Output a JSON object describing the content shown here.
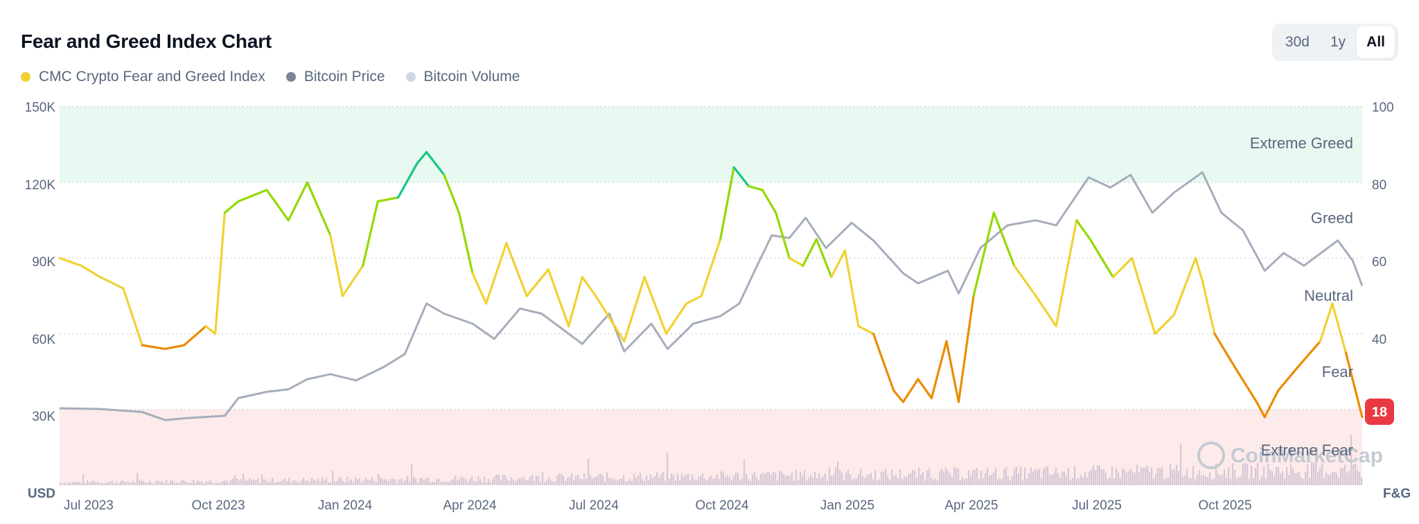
{
  "header": {
    "title": "Fear and Greed Index Chart"
  },
  "range_buttons": [
    {
      "label": "30d",
      "active": false
    },
    {
      "label": "1y",
      "active": false
    },
    {
      "label": "All",
      "active": true
    }
  ],
  "legend": [
    {
      "label": "CMC Crypto Fear and Greed Index",
      "color": "#f1d132"
    },
    {
      "label": "Bitcoin Price",
      "color": "#7d8597"
    },
    {
      "label": "Bitcoin Volume",
      "color": "#cfd6e4"
    }
  ],
  "watermark": "CoinMarketCap",
  "colors": {
    "extreme_greed": "#16c784",
    "greed": "#93d900",
    "neutral": "#f1d132",
    "fear": "#ea8c00",
    "extreme_fear": "#ea3943",
    "price": "#a6adbb",
    "volume": "#d5c8d6",
    "zone_greed_bg": "#e8f9f1",
    "zone_fear_bg": "#fdeaea"
  },
  "chart_data": {
    "type": "line",
    "left_axis": {
      "unit": "USD",
      "ticks": [
        "150K",
        "120K",
        "90K",
        "60K",
        "30K"
      ],
      "values": [
        150000,
        120000,
        90000,
        60000,
        30000
      ],
      "range": [
        0,
        150000
      ]
    },
    "right_axis": {
      "unit": "F&G",
      "ticks": [
        "100",
        "80",
        "60",
        "40"
      ],
      "values": [
        100,
        80,
        60,
        40
      ],
      "range": [
        0,
        100
      ]
    },
    "x_ticks": [
      "Jul 2023",
      "Oct 2023",
      "Jan 2024",
      "Apr 2024",
      "Jul 2024",
      "Oct 2024",
      "Jan 2025",
      "Apr 2025",
      "Jul 2025",
      "Oct 2025"
    ],
    "zones": [
      "Extreme Greed",
      "Greed",
      "Neutral",
      "Fear",
      "Extreme Fear"
    ],
    "current_value": "18",
    "series": [
      {
        "name": "CMC Crypto Fear and Greed Index",
        "x": [
          "2023-06-15",
          "2023-07-01",
          "2023-07-15",
          "2023-08-01",
          "2023-08-15",
          "2023-09-01",
          "2023-09-15",
          "2023-10-01",
          "2023-10-08",
          "2023-10-15",
          "2023-10-25",
          "2023-11-15",
          "2023-12-01",
          "2023-12-15",
          "2024-01-01",
          "2024-01-10",
          "2024-01-25",
          "2024-02-05",
          "2024-02-20",
          "2024-03-05",
          "2024-03-12",
          "2024-03-25",
          "2024-04-05",
          "2024-04-15",
          "2024-04-25",
          "2024-05-10",
          "2024-05-25",
          "2024-06-10",
          "2024-06-25",
          "2024-07-05",
          "2024-07-15",
          "2024-08-05",
          "2024-08-20",
          "2024-09-05",
          "2024-09-20",
          "2024-10-01",
          "2024-10-15",
          "2024-10-25",
          "2024-11-05",
          "2024-11-15",
          "2024-11-25",
          "2024-12-05",
          "2024-12-15",
          "2024-12-25",
          "2025-01-05",
          "2025-01-15",
          "2025-01-25",
          "2025-02-05",
          "2025-02-20",
          "2025-02-27",
          "2025-03-10",
          "2025-03-20",
          "2025-03-31",
          "2025-04-09",
          "2025-04-20",
          "2025-05-05",
          "2025-05-20",
          "2025-06-05",
          "2025-06-20",
          "2025-07-05",
          "2025-07-15",
          "2025-08-01",
          "2025-08-15",
          "2025-09-01",
          "2025-09-15",
          "2025-10-01",
          "2025-10-06",
          "2025-10-15",
          "2025-11-01",
          "2025-11-15",
          "2025-11-21",
          "2025-12-01",
          "2025-12-15",
          "2026-01-01",
          "2026-01-10",
          "2026-01-20",
          "2026-02-01"
        ],
        "values": [
          60,
          58,
          55,
          52,
          37,
          36,
          37,
          42,
          40,
          72,
          75,
          78,
          70,
          80,
          66,
          50,
          58,
          75,
          76,
          85,
          88,
          82,
          72,
          56,
          48,
          64,
          50,
          57,
          42,
          55,
          50,
          38,
          55,
          40,
          48,
          50,
          65,
          84,
          79,
          78,
          72,
          60,
          58,
          65,
          55,
          62,
          42,
          40,
          25,
          22,
          28,
          23,
          38,
          22,
          50,
          72,
          58,
          50,
          42,
          70,
          65,
          55,
          60,
          40,
          45,
          60,
          54,
          40,
          30,
          22,
          18,
          25,
          31,
          38,
          48,
          35,
          18
        ]
      },
      {
        "name": "Bitcoin Price",
        "x": [
          "2023-06-15",
          "2023-07-15",
          "2023-08-15",
          "2023-09-01",
          "2023-09-15",
          "2023-10-15",
          "2023-10-25",
          "2023-11-15",
          "2023-12-01",
          "2023-12-15",
          "2024-01-01",
          "2024-01-20",
          "2024-02-10",
          "2024-02-25",
          "2024-03-12",
          "2024-03-25",
          "2024-04-15",
          "2024-05-01",
          "2024-05-20",
          "2024-06-05",
          "2024-06-25",
          "2024-07-05",
          "2024-07-25",
          "2024-08-05",
          "2024-08-25",
          "2024-09-06",
          "2024-09-25",
          "2024-10-15",
          "2024-10-29",
          "2024-11-12",
          "2024-11-22",
          "2024-12-05",
          "2024-12-17",
          "2025-01-01",
          "2025-01-20",
          "2025-02-05",
          "2025-02-27",
          "2025-03-10",
          "2025-04-01",
          "2025-04-09",
          "2025-04-25",
          "2025-05-15",
          "2025-06-05",
          "2025-06-20",
          "2025-07-14",
          "2025-07-30",
          "2025-08-14",
          "2025-08-30",
          "2025-09-15",
          "2025-10-06",
          "2025-10-20",
          "2025-11-05",
          "2025-11-21",
          "2025-12-05",
          "2025-12-20",
          "2026-01-14",
          "2026-01-25",
          "2026-02-01"
        ],
        "values": [
          30500,
          30200,
          29000,
          25800,
          26500,
          27500,
          34500,
          37000,
          38000,
          42000,
          44000,
          41500,
          47000,
          52000,
          72000,
          68000,
          64000,
          58000,
          70000,
          68000,
          60000,
          56000,
          68000,
          53000,
          64000,
          54000,
          64000,
          67000,
          72000,
          88000,
          99000,
          98000,
          106000,
          94000,
          104000,
          97000,
          84000,
          80000,
          85000,
          76000,
          94000,
          103000,
          105000,
          103000,
          122000,
          118000,
          123000,
          108000,
          116000,
          124000,
          108000,
          101000,
          85000,
          92000,
          87000,
          97000,
          89000,
          79000
        ]
      },
      {
        "name": "Bitcoin Volume",
        "values": []
      }
    ]
  }
}
